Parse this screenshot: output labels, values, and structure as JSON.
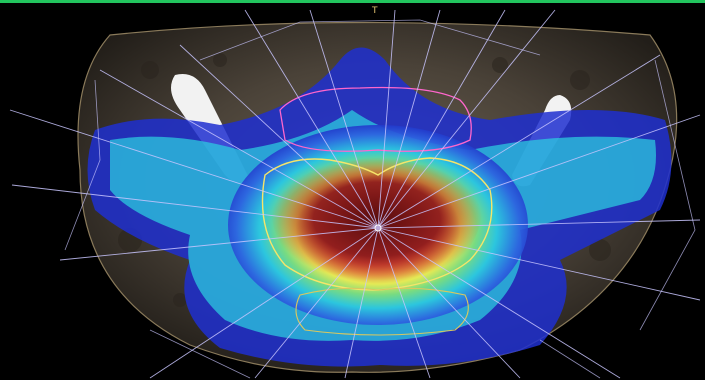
{
  "viewer": {
    "orientation_label": "T",
    "colors": {
      "background": "#000000",
      "top_bar": "#22c55e",
      "beam_lines": "#c9c6ff",
      "orientation_label": "#e0c070",
      "contour_outer": "#f5e56a",
      "contour_bladder": "#ff66cc",
      "high_dose": "#8b1a1a",
      "mid_dose": "#f0442a",
      "low_dose": "#22d3ee",
      "lowest_dose": "#1e2fd0"
    },
    "icons": [
      "isocenter-icon"
    ]
  }
}
